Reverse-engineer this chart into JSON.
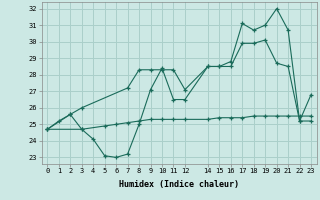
{
  "xlabel": "Humidex (Indice chaleur)",
  "background_color": "#cce8e4",
  "grid_color": "#aacfca",
  "line_color": "#1a6b5a",
  "xlim": [
    -0.5,
    23.5
  ],
  "ylim": [
    22.6,
    32.4
  ],
  "xticks": [
    0,
    1,
    2,
    3,
    4,
    5,
    6,
    7,
    8,
    9,
    10,
    11,
    12,
    14,
    15,
    16,
    17,
    18,
    19,
    20,
    21,
    22,
    23
  ],
  "xtick_labels": [
    "0",
    "1",
    "2",
    "3",
    "4",
    "5",
    "6",
    "7",
    "8",
    "9",
    "10",
    "11",
    "12",
    "14",
    "15",
    "16",
    "17",
    "18",
    "19",
    "20",
    "21",
    "22",
    "23"
  ],
  "yticks": [
    23,
    24,
    25,
    26,
    27,
    28,
    29,
    30,
    31,
    32
  ],
  "line1_x": [
    0,
    1,
    2,
    3,
    4,
    5,
    6,
    7,
    8,
    9,
    10,
    11,
    12,
    14,
    15,
    16,
    17,
    18,
    19,
    20,
    21,
    22,
    23
  ],
  "line1_y": [
    24.7,
    25.2,
    25.6,
    24.7,
    24.1,
    23.1,
    23.0,
    23.2,
    25.0,
    27.1,
    28.4,
    26.5,
    26.5,
    28.5,
    28.5,
    28.5,
    29.9,
    29.9,
    30.1,
    28.7,
    28.5,
    25.2,
    25.2
  ],
  "line2_x": [
    0,
    2,
    3,
    7,
    8,
    9,
    10,
    11,
    12,
    14,
    15,
    16,
    17,
    18,
    19,
    20,
    21,
    22,
    23
  ],
  "line2_y": [
    24.7,
    25.6,
    26.0,
    27.2,
    28.3,
    28.3,
    28.3,
    28.3,
    27.1,
    28.5,
    28.5,
    28.8,
    31.1,
    30.7,
    31.0,
    32.0,
    30.7,
    25.2,
    26.8
  ],
  "line3_x": [
    0,
    3,
    5,
    6,
    7,
    8,
    9,
    10,
    11,
    12,
    14,
    15,
    16,
    17,
    18,
    19,
    20,
    21,
    22,
    23
  ],
  "line3_y": [
    24.7,
    24.7,
    24.9,
    25.0,
    25.1,
    25.2,
    25.3,
    25.3,
    25.3,
    25.3,
    25.3,
    25.4,
    25.4,
    25.4,
    25.5,
    25.5,
    25.5,
    25.5,
    25.5,
    25.5
  ]
}
